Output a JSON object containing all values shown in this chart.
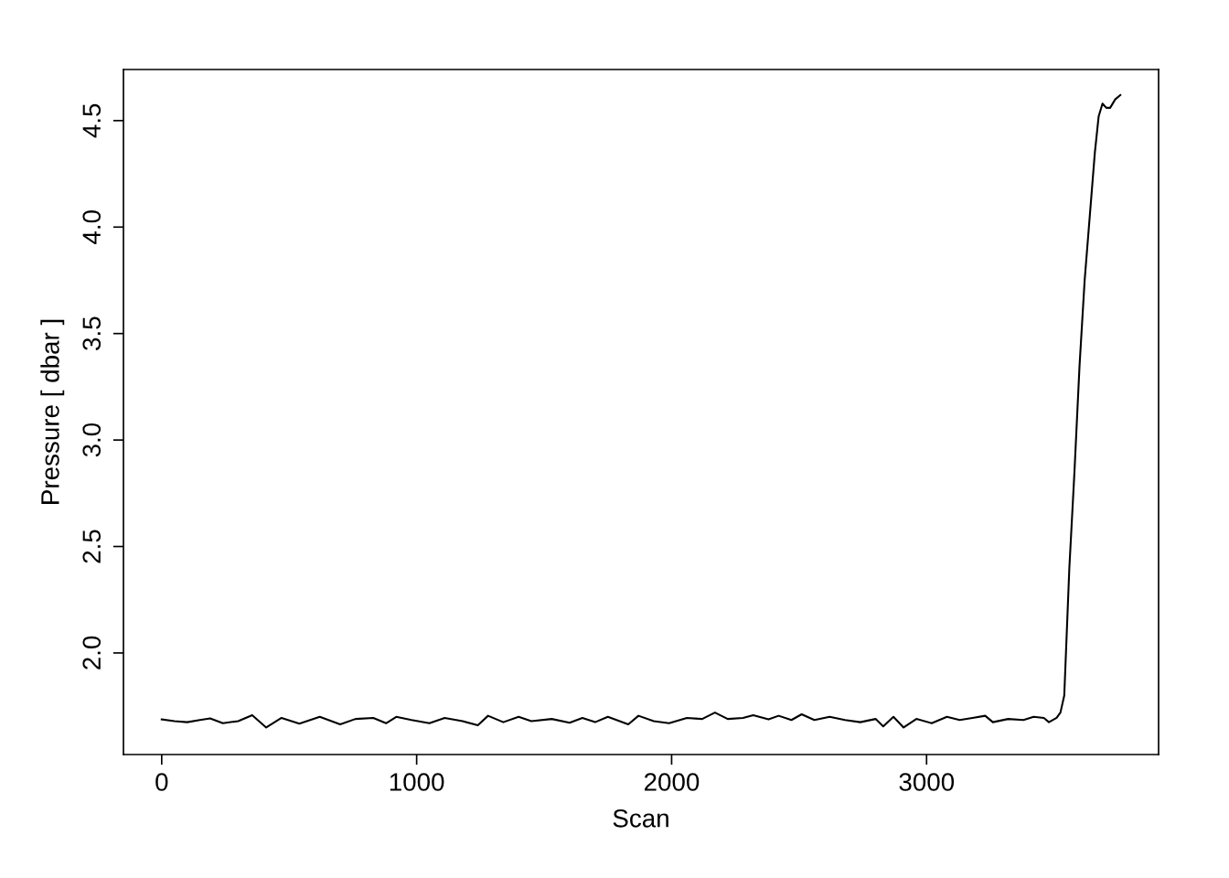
{
  "chart_data": {
    "type": "line",
    "xlabel": "Scan",
    "ylabel": "Pressure [ dbar ]",
    "x": [
      0,
      50,
      100,
      150,
      190,
      240,
      300,
      355,
      410,
      470,
      540,
      620,
      700,
      760,
      830,
      880,
      920,
      980,
      1050,
      1110,
      1180,
      1240,
      1280,
      1340,
      1400,
      1450,
      1530,
      1600,
      1650,
      1700,
      1750,
      1830,
      1870,
      1930,
      1990,
      2060,
      2120,
      2170,
      2220,
      2280,
      2320,
      2380,
      2420,
      2470,
      2510,
      2560,
      2620,
      2680,
      2740,
      2800,
      2830,
      2870,
      2910,
      2960,
      3020,
      3080,
      3130,
      3180,
      3230,
      3260,
      3320,
      3380,
      3420,
      3460,
      3480,
      3510,
      3525,
      3540,
      3560,
      3580,
      3600,
      3620,
      3640,
      3660,
      3675,
      3690,
      3705,
      3720,
      3740,
      3760
    ],
    "series": [
      {
        "color": "#000000",
        "values": [
          1.688,
          1.68,
          1.675,
          1.685,
          1.693,
          1.67,
          1.68,
          1.708,
          1.65,
          1.695,
          1.668,
          1.7,
          1.665,
          1.69,
          1.695,
          1.67,
          1.7,
          1.685,
          1.67,
          1.695,
          1.68,
          1.66,
          1.705,
          1.675,
          1.7,
          1.68,
          1.69,
          1.672,
          1.695,
          1.675,
          1.7,
          1.665,
          1.705,
          1.68,
          1.67,
          1.695,
          1.69,
          1.72,
          1.69,
          1.695,
          1.708,
          1.688,
          1.705,
          1.685,
          1.712,
          1.685,
          1.7,
          1.685,
          1.675,
          1.69,
          1.655,
          1.7,
          1.65,
          1.69,
          1.67,
          1.7,
          1.685,
          1.695,
          1.705,
          1.675,
          1.69,
          1.685,
          1.7,
          1.695,
          1.675,
          1.695,
          1.72,
          1.8,
          2.4,
          2.85,
          3.35,
          3.75,
          4.05,
          4.35,
          4.52,
          4.58,
          4.56,
          4.56,
          4.6,
          4.62
        ]
      }
    ],
    "xlim": [
      -150,
      3910
    ],
    "ylim": [
      1.523,
      4.74
    ],
    "xticks": [
      0,
      1000,
      2000,
      3000
    ],
    "yticks": [
      {
        "value": 2.0,
        "label": "2.0"
      },
      {
        "value": 2.5,
        "label": "2.5"
      },
      {
        "value": 3.0,
        "label": "3.0"
      },
      {
        "value": 3.5,
        "label": "3.5"
      },
      {
        "value": 4.0,
        "label": "4.0"
      },
      {
        "value": 4.5,
        "label": "4.5"
      }
    ],
    "grid": false,
    "legend": false,
    "marker": "none",
    "line_style": "solid"
  }
}
